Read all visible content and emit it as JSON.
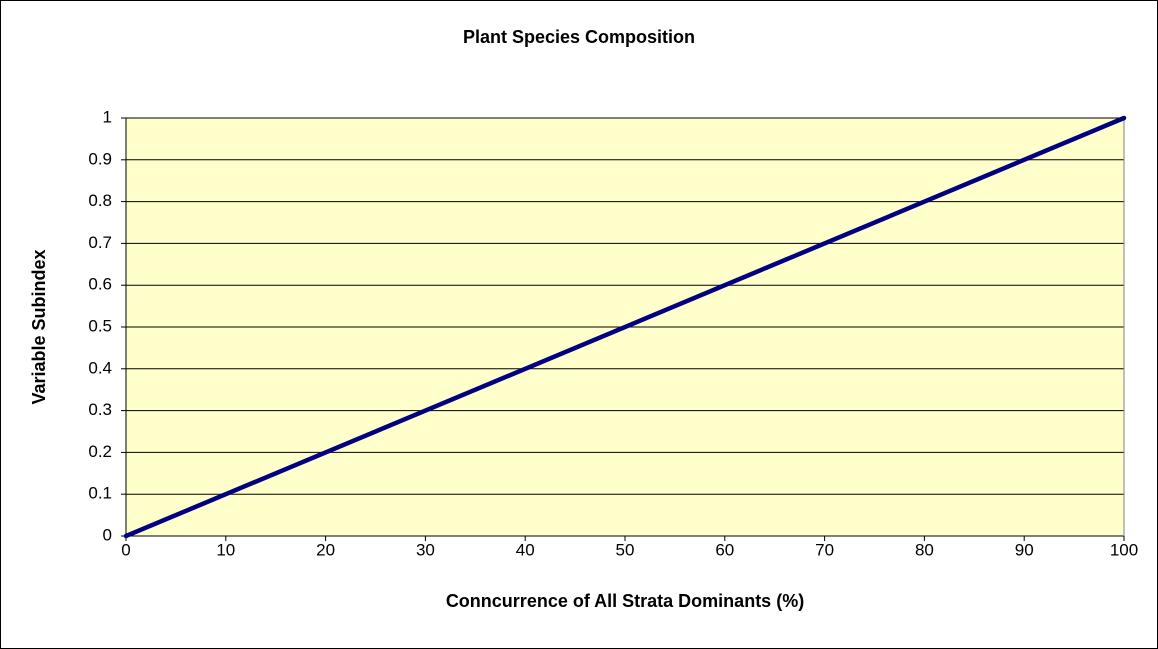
{
  "chart_data": {
    "type": "line",
    "title": "Plant Species Composition",
    "xlabel": "Conncurrence of All Strata Dominants (%)",
    "ylabel": "Variable Subindex",
    "x": [
      0,
      100
    ],
    "values": [
      0,
      1
    ],
    "color": "#000080",
    "xlim": [
      0,
      100
    ],
    "xticks": [
      0,
      10,
      20,
      30,
      40,
      50,
      60,
      70,
      80,
      90,
      100
    ],
    "ylim": [
      0,
      1
    ],
    "yticks": [
      0,
      0.1,
      0.2,
      0.3,
      0.4,
      0.5,
      0.6,
      0.7,
      0.8,
      0.9,
      1
    ],
    "grid": true,
    "plot_background": "#ffffcc"
  }
}
